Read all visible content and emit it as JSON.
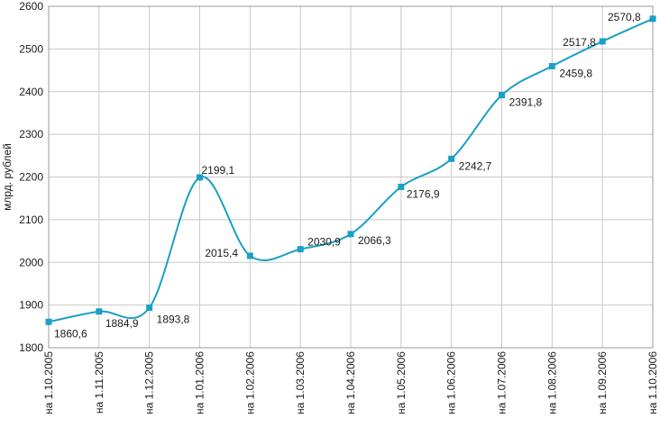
{
  "chart_data": {
    "type": "line",
    "title": "",
    "xlabel": "",
    "ylabel": "млрд. рублей",
    "ylim": [
      1800,
      2600
    ],
    "yticks": [
      1800,
      1900,
      2000,
      2100,
      2200,
      2300,
      2400,
      2500,
      2600
    ],
    "grid": true,
    "legend": "none",
    "line_color": "#1aa0c4",
    "marker_color": "#1aa0c4",
    "grid_color": "#c8c8c8",
    "categories": [
      "на 1.10.2005",
      "на 1.11.2005",
      "на 1.12.2005",
      "на 1.01.2006",
      "на 1.02.2006",
      "на 1.03.2006",
      "на 1.04.2006",
      "на 1.05.2006",
      "на 1.06.2006",
      "на 1.07.2006",
      "на 1.08.2006",
      "на 1.09.2006",
      "на 1.10.2006"
    ],
    "values": [
      1860.6,
      1884.9,
      1893.8,
      2199.1,
      2015.4,
      2030.9,
      2066.3,
      2176.9,
      2242.7,
      2391.8,
      2459.8,
      2517.8,
      2570.8
    ],
    "data_labels": [
      "1860,6",
      "1884,9",
      "1893,8",
      "2199,1",
      "2015,4",
      "2030,9",
      "2066,3",
      "2176,9",
      "2242,7",
      "2391,8",
      "2459,8",
      "2517,8",
      "2570,8"
    ],
    "ytick_labels": [
      "1800",
      "1900",
      "2000",
      "2100",
      "2200",
      "2300",
      "2400",
      "2500",
      "2600"
    ]
  }
}
